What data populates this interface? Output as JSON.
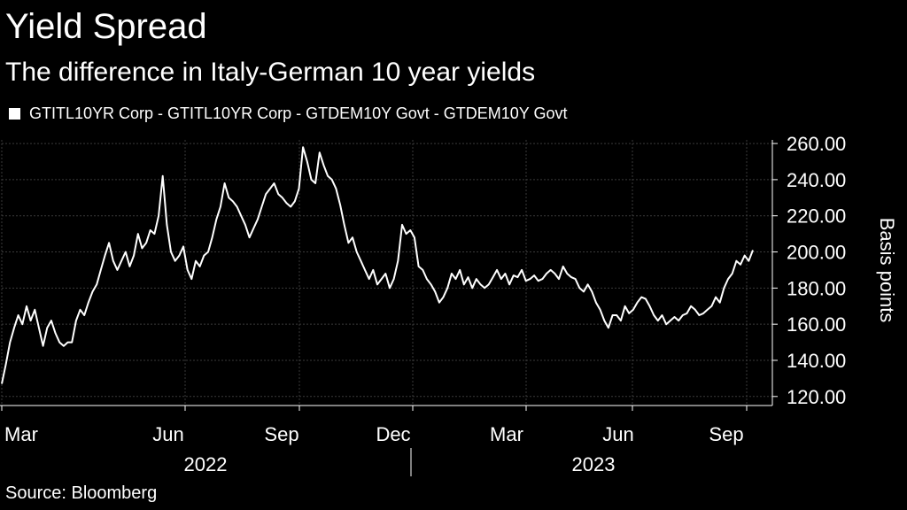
{
  "chart_data": {
    "type": "line",
    "title": "Yield Spread",
    "subtitle": "The difference in Italy-German 10 year yields",
    "legend": [
      "GTITL10YR Corp - GTITL10YR Corp - GTDEM10Y Govt - GTDEM10Y Govt"
    ],
    "ylabel": "Basis points",
    "source": "Source: Bloomberg",
    "ylim": [
      115,
      262
    ],
    "yticks": [
      120,
      140,
      160,
      180,
      200,
      220,
      240,
      260
    ],
    "ytick_labels": [
      "120.00",
      "140.00",
      "160.00",
      "180.00",
      "200.00",
      "220.00",
      "240.00",
      "260.00"
    ],
    "x_month_ticks": [
      "Mar",
      "Jun",
      "Sep",
      "Dec",
      "Mar",
      "Jun",
      "Sep"
    ],
    "x_year_labels": [
      "2022",
      "2023"
    ],
    "series": [
      {
        "name": "GTITL10YR Corp - GTITL10YR Corp - GTDEM10Y Govt - GTDEM10Y Govt",
        "color": "#ffffff",
        "values": [
          127,
          138,
          150,
          158,
          165,
          160,
          170,
          162,
          168,
          158,
          148,
          158,
          162,
          155,
          150,
          148,
          150,
          150,
          162,
          168,
          165,
          172,
          178,
          182,
          190,
          198,
          205,
          195,
          190,
          195,
          200,
          192,
          198,
          210,
          202,
          205,
          212,
          210,
          220,
          242,
          215,
          200,
          195,
          198,
          203,
          190,
          185,
          195,
          192,
          198,
          200,
          208,
          218,
          225,
          238,
          230,
          228,
          225,
          220,
          215,
          208,
          213,
          218,
          225,
          232,
          235,
          238,
          232,
          230,
          227,
          225,
          228,
          235,
          258,
          250,
          240,
          238,
          255,
          248,
          242,
          240,
          235,
          226,
          215,
          205,
          208,
          200,
          195,
          190,
          185,
          190,
          182,
          185,
          188,
          180,
          185,
          195,
          215,
          210,
          212,
          208,
          192,
          190,
          185,
          182,
          178,
          172,
          175,
          180,
          188,
          185,
          190,
          182,
          186,
          180,
          185,
          182,
          180,
          182,
          186,
          190,
          185,
          188,
          182,
          187,
          186,
          190,
          184,
          185,
          187,
          184,
          185,
          188,
          190,
          188,
          185,
          192,
          188,
          186,
          185,
          180,
          178,
          182,
          178,
          172,
          168,
          162,
          158,
          165,
          165,
          162,
          170,
          166,
          168,
          172,
          175,
          174,
          170,
          165,
          162,
          165,
          160,
          162,
          164,
          162,
          165,
          166,
          170,
          168,
          165,
          166,
          168,
          170,
          175,
          172,
          180,
          185,
          188,
          195,
          193,
          198,
          195,
          201
        ]
      }
    ]
  }
}
